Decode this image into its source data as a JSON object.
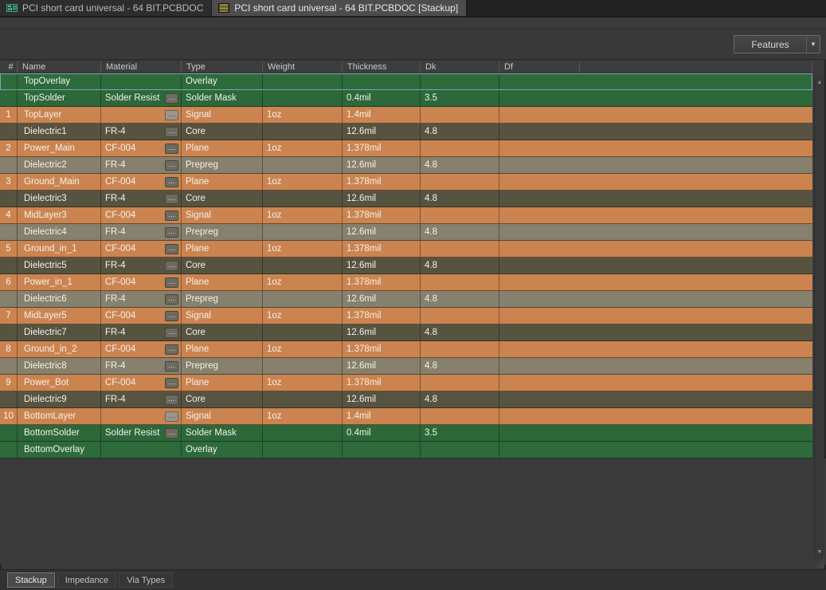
{
  "doc_tabs": [
    {
      "label": "PCI short card universal - 64 BIT.PCBDOC",
      "active": false
    },
    {
      "label": "PCI short card universal - 64 BIT.PCBDOC [Stackup]",
      "active": true
    }
  ],
  "toolbar": {
    "features_label": "Features"
  },
  "icons": {
    "dropdown": "▼",
    "scroll_up": "▲",
    "scroll_down": "▼",
    "browse": "···"
  },
  "table": {
    "columns": [
      "#",
      "Name",
      "Material",
      "Type",
      "Weight",
      "Thickness",
      "Dk",
      "Df"
    ],
    "rows": [
      {
        "num": "",
        "name": "TopOverlay",
        "material": "",
        "browse": false,
        "type": "Overlay",
        "weight": "",
        "thickness": "",
        "dk": "",
        "df": "",
        "kind": "overlay",
        "selected": true
      },
      {
        "num": "",
        "name": "TopSolder",
        "material": "Solder Resist",
        "browse": true,
        "type": "Solder Mask",
        "weight": "",
        "thickness": "0.4mil",
        "dk": "3.5",
        "df": "",
        "kind": "solder"
      },
      {
        "num": "1",
        "name": "TopLayer",
        "material": "",
        "browse": true,
        "browse_light": true,
        "type": "Signal",
        "weight": "1oz",
        "thickness": "1.4mil",
        "dk": "",
        "df": "",
        "kind": "copper"
      },
      {
        "num": "",
        "name": "Dielectric1",
        "material": "FR-4",
        "browse": true,
        "type": "Core",
        "weight": "",
        "thickness": "12.6mil",
        "dk": "4.8",
        "df": "",
        "kind": "core"
      },
      {
        "num": "2",
        "name": "Power_Main",
        "material": "CF-004",
        "browse": true,
        "type": "Plane",
        "weight": "1oz",
        "thickness": "1.378mil",
        "dk": "",
        "df": "",
        "kind": "copper"
      },
      {
        "num": "",
        "name": "Dielectric2",
        "material": "FR-4",
        "browse": true,
        "type": "Prepreg",
        "weight": "",
        "thickness": "12.6mil",
        "dk": "4.8",
        "df": "",
        "kind": "prepreg"
      },
      {
        "num": "3",
        "name": "Ground_Main",
        "material": "CF-004",
        "browse": true,
        "type": "Plane",
        "weight": "1oz",
        "thickness": "1.378mil",
        "dk": "",
        "df": "",
        "kind": "copper"
      },
      {
        "num": "",
        "name": "Dielectric3",
        "material": "FR-4",
        "browse": true,
        "type": "Core",
        "weight": "",
        "thickness": "12.6mil",
        "dk": "4.8",
        "df": "",
        "kind": "core"
      },
      {
        "num": "4",
        "name": "MidLayer3",
        "material": "CF-004",
        "browse": true,
        "type": "Signal",
        "weight": "1oz",
        "thickness": "1.378mil",
        "dk": "",
        "df": "",
        "kind": "copper"
      },
      {
        "num": "",
        "name": "Dielectric4",
        "material": "FR-4",
        "browse": true,
        "type": "Prepreg",
        "weight": "",
        "thickness": "12.6mil",
        "dk": "4.8",
        "df": "",
        "kind": "prepreg"
      },
      {
        "num": "5",
        "name": "Ground_in_1",
        "material": "CF-004",
        "browse": true,
        "type": "Plane",
        "weight": "1oz",
        "thickness": "1.378mil",
        "dk": "",
        "df": "",
        "kind": "copper"
      },
      {
        "num": "",
        "name": "Dielectric5",
        "material": "FR-4",
        "browse": true,
        "type": "Core",
        "weight": "",
        "thickness": "12.6mil",
        "dk": "4.8",
        "df": "",
        "kind": "core"
      },
      {
        "num": "6",
        "name": "Power_in_1",
        "material": "CF-004",
        "browse": true,
        "type": "Plane",
        "weight": "1oz",
        "thickness": "1.378mil",
        "dk": "",
        "df": "",
        "kind": "copper"
      },
      {
        "num": "",
        "name": "Dielectric6",
        "material": "FR-4",
        "browse": true,
        "type": "Prepreg",
        "weight": "",
        "thickness": "12.6mil",
        "dk": "4.8",
        "df": "",
        "kind": "prepreg"
      },
      {
        "num": "7",
        "name": "MidLayer5",
        "material": "CF-004",
        "browse": true,
        "type": "Signal",
        "weight": "1oz",
        "thickness": "1.378mil",
        "dk": "",
        "df": "",
        "kind": "copper"
      },
      {
        "num": "",
        "name": "Dielectric7",
        "material": "FR-4",
        "browse": true,
        "type": "Core",
        "weight": "",
        "thickness": "12.6mil",
        "dk": "4.8",
        "df": "",
        "kind": "core"
      },
      {
        "num": "8",
        "name": "Ground_in_2",
        "material": "CF-004",
        "browse": true,
        "type": "Plane",
        "weight": "1oz",
        "thickness": "1.378mil",
        "dk": "",
        "df": "",
        "kind": "copper"
      },
      {
        "num": "",
        "name": "Dielectric8",
        "material": "FR-4",
        "browse": true,
        "type": "Prepreg",
        "weight": "",
        "thickness": "12.6mil",
        "dk": "4.8",
        "df": "",
        "kind": "prepreg"
      },
      {
        "num": "9",
        "name": "Power_Bot",
        "material": "CF-004",
        "browse": true,
        "type": "Plane",
        "weight": "1oz",
        "thickness": "1.378mil",
        "dk": "",
        "df": "",
        "kind": "copper"
      },
      {
        "num": "",
        "name": "Dielectric9",
        "material": "FR-4",
        "browse": true,
        "type": "Core",
        "weight": "",
        "thickness": "12.6mil",
        "dk": "4.8",
        "df": "",
        "kind": "core"
      },
      {
        "num": "10",
        "name": "BottomLayer",
        "material": "",
        "browse": true,
        "browse_light": true,
        "type": "Signal",
        "weight": "1oz",
        "thickness": "1.4mil",
        "dk": "",
        "df": "",
        "kind": "copper"
      },
      {
        "num": "",
        "name": "BottomSolder",
        "material": "Solder Resist",
        "browse": true,
        "type": "Solder Mask",
        "weight": "",
        "thickness": "0.4mil",
        "dk": "3.5",
        "df": "",
        "kind": "solder"
      },
      {
        "num": "",
        "name": "BottomOverlay",
        "material": "",
        "browse": false,
        "type": "Overlay",
        "weight": "",
        "thickness": "",
        "dk": "",
        "df": "",
        "kind": "overlay"
      }
    ]
  },
  "bottom_tabs": [
    {
      "label": "Stackup",
      "active": true
    },
    {
      "label": "Impedance",
      "active": false
    },
    {
      "label": "Via Types",
      "active": false
    }
  ],
  "colors": {
    "row_overlay": "#2d6b3a",
    "row_solder": "#2c6839",
    "row_copper": "#cb8450",
    "row_core": "#575341",
    "row_prepreg": "#86806c",
    "selection": "#7aa7bc"
  }
}
